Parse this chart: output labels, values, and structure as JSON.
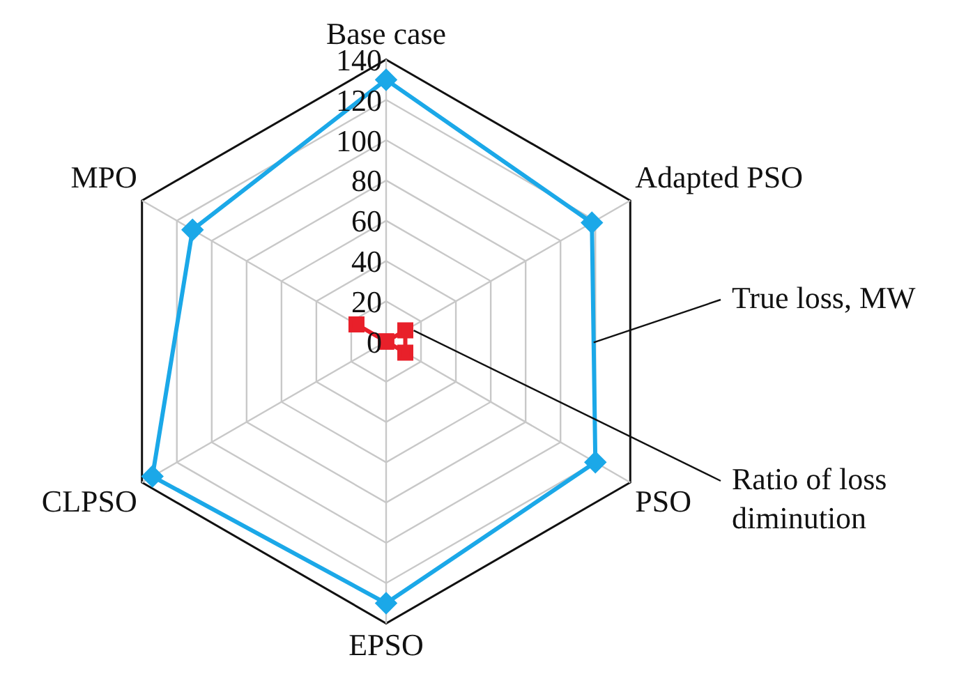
{
  "chart_data": {
    "type": "radar",
    "categories": [
      "Base case",
      "Adapted PSO",
      "PSO",
      "EPSO",
      "CLPSO",
      "MPO"
    ],
    "series": [
      {
        "name": "True loss, MW",
        "color": "#1ba8e8",
        "marker": "diamond",
        "values": [
          130,
          118,
          120,
          130,
          134,
          111
        ]
      },
      {
        "name": "Ratio of loss diminution",
        "color": "#e8202a",
        "marker": "square",
        "values": [
          0,
          11,
          11,
          0,
          0,
          17
        ]
      }
    ],
    "ylim": [
      0,
      140
    ],
    "yticks": [
      0,
      20,
      40,
      60,
      80,
      100,
      120,
      140
    ],
    "grid": true,
    "legend": false
  }
}
